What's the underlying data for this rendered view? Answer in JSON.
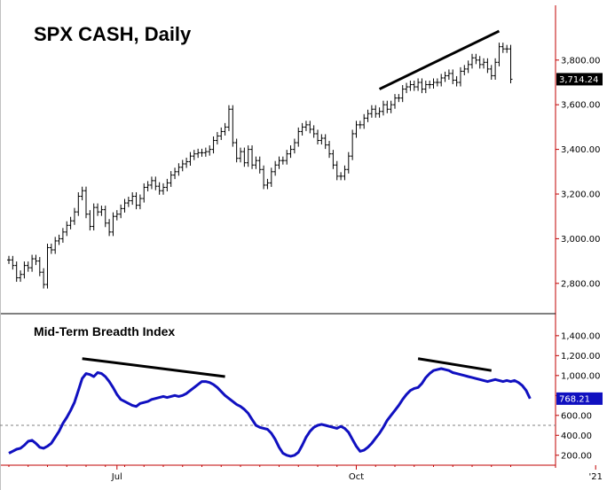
{
  "colors": {
    "axis": "#c00000",
    "price_bars": "#000000",
    "breadth_line": "#1010c0",
    "trend_lines": "#000000",
    "last_price_bg": "#000000",
    "last_price_fg": "#ffffff",
    "last_breadth_bg": "#1010c0",
    "last_breadth_fg": "#ffffff",
    "reference_line": "#808080"
  },
  "chart_data": [
    {
      "type": "ohlc",
      "title": "SPX CASH, Daily",
      "ylim": [
        2700,
        3950
      ],
      "yticks": [
        2800,
        3000,
        3200,
        3400,
        3600,
        3800
      ],
      "ytick_labels": [
        "2,800.00",
        "3,000.00",
        "3,200.00",
        "3,400.00",
        "3,600.00",
        "3,800.00"
      ],
      "last_value_label": "3,714.24",
      "xticks": [
        {
          "label": "Jul",
          "bar": 28
        },
        {
          "label": "Oct",
          "bar": 90
        },
        {
          "label": "'21",
          "bar": 152
        }
      ],
      "closes": [
        2905,
        2880,
        2825,
        2840,
        2880,
        2870,
        2910,
        2900,
        2850,
        2795,
        2960,
        2950,
        2990,
        3000,
        3030,
        3060,
        3080,
        3120,
        3190,
        3215,
        3110,
        3055,
        3140,
        3120,
        3130,
        3070,
        3030,
        3100,
        3110,
        3135,
        3160,
        3170,
        3190,
        3150,
        3180,
        3230,
        3240,
        3260,
        3235,
        3215,
        3230,
        3250,
        3285,
        3300,
        3320,
        3335,
        3345,
        3370,
        3380,
        3385,
        3385,
        3390,
        3400,
        3440,
        3460,
        3480,
        3500,
        3580,
        3430,
        3360,
        3390,
        3340,
        3400,
        3330,
        3350,
        3310,
        3240,
        3250,
        3300,
        3330,
        3350,
        3350,
        3380,
        3400,
        3430,
        3480,
        3500,
        3510,
        3490,
        3470,
        3440,
        3450,
        3420,
        3380,
        3330,
        3280,
        3280,
        3310,
        3370,
        3470,
        3510,
        3510,
        3540,
        3560,
        3580,
        3560,
        3570,
        3600,
        3580,
        3600,
        3630,
        3630,
        3670,
        3680,
        3690,
        3680,
        3700,
        3670,
        3690,
        3690,
        3700,
        3700,
        3720,
        3730,
        3740,
        3710,
        3700,
        3750,
        3760,
        3780,
        3810,
        3800,
        3780,
        3790,
        3760,
        3730,
        3790,
        3860,
        3850,
        3850,
        3714.24
      ],
      "breadth_ref": "ohlc series",
      "trend_line": {
        "from": {
          "bar": 96,
          "value": 3670
        },
        "to": {
          "bar": 127,
          "value": 3930
        }
      }
    },
    {
      "type": "line",
      "title": "Mid-Term Breadth Index",
      "ylim": [
        100,
        1550
      ],
      "yticks": [
        200,
        400,
        600,
        800,
        1000,
        1200,
        1400
      ],
      "ytick_labels": [
        "200.00",
        "400.00",
        "600.00",
        "800.00",
        "1,000.00",
        "1,200.00",
        "1,400.00"
      ],
      "reference_level": 500,
      "last_value_label": "768.21",
      "values": [
        220,
        240,
        260,
        270,
        300,
        340,
        350,
        320,
        280,
        270,
        290,
        320,
        380,
        440,
        520,
        580,
        650,
        730,
        850,
        970,
        1020,
        1010,
        990,
        1030,
        1020,
        990,
        940,
        880,
        810,
        760,
        740,
        720,
        700,
        690,
        720,
        730,
        740,
        760,
        770,
        780,
        790,
        780,
        790,
        800,
        790,
        800,
        820,
        850,
        880,
        910,
        940,
        940,
        930,
        910,
        880,
        840,
        800,
        770,
        740,
        710,
        690,
        660,
        620,
        560,
        500,
        480,
        470,
        460,
        420,
        360,
        280,
        220,
        200,
        190,
        200,
        230,
        300,
        380,
        440,
        480,
        500,
        510,
        500,
        490,
        480,
        470,
        490,
        470,
        430,
        360,
        290,
        240,
        250,
        280,
        320,
        370,
        420,
        480,
        550,
        600,
        650,
        700,
        760,
        810,
        850,
        870,
        880,
        920,
        980,
        1020,
        1050,
        1060,
        1070,
        1060,
        1050,
        1030,
        1020,
        1010,
        1000,
        990,
        980,
        970,
        960,
        950,
        940,
        950,
        960,
        950,
        940,
        950,
        940,
        950,
        930,
        900,
        850,
        768.21
      ],
      "trend_line": {
        "from": {
          "bar": 19,
          "value": 1170
        },
        "to": {
          "bar": 56,
          "value": 990
        }
      },
      "trend_line_2": {
        "from": {
          "bar": 106,
          "value": 1170
        },
        "to": {
          "bar": 125,
          "value": 1050
        }
      }
    }
  ]
}
